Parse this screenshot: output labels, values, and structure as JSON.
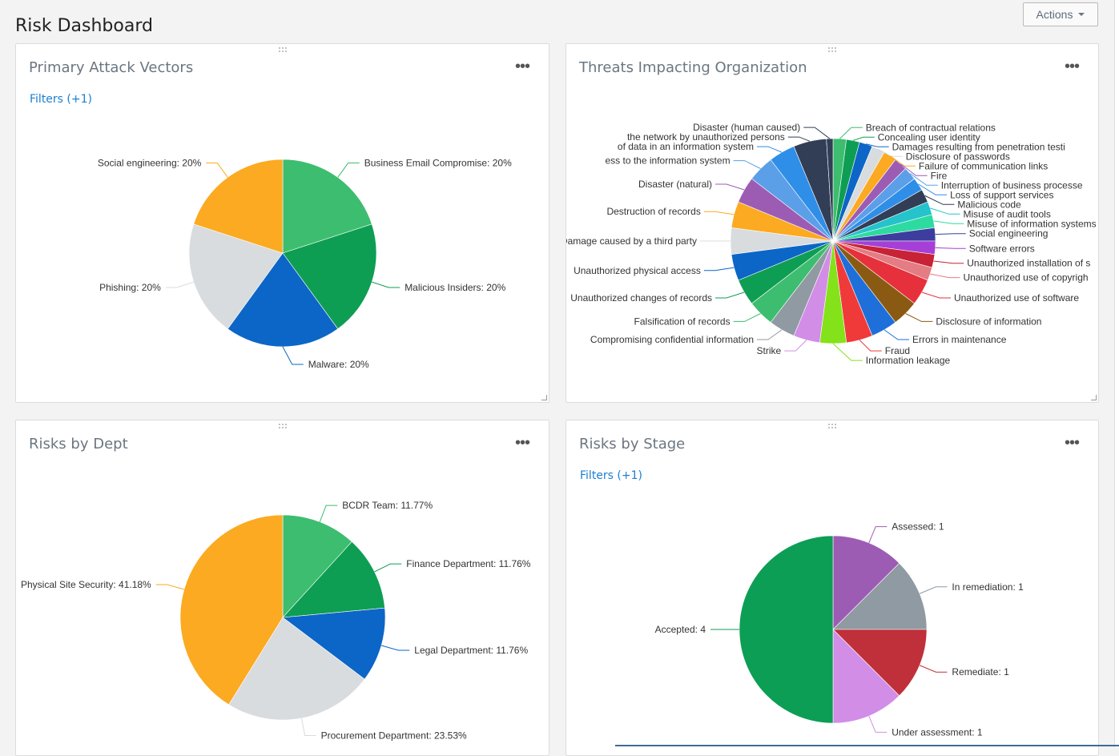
{
  "page": {
    "title": "Risk Dashboard",
    "actions_label": "Actions"
  },
  "panels": [
    {
      "title": "Primary Attack Vectors",
      "filters": "Filters (+1)"
    },
    {
      "title": "Threats Impacting Organization",
      "filters": ""
    },
    {
      "title": "Risks by Dept",
      "filters": ""
    },
    {
      "title": "Risks by Stage",
      "filters": "Filters (+1)"
    }
  ],
  "chart_data": [
    {
      "type": "pie",
      "title": "Primary Attack Vectors",
      "slices": [
        {
          "label": "Business Email Compromise: 20%",
          "value": 20,
          "color": "#3dbd6f"
        },
        {
          "label": "Malicious Insiders: 20%",
          "value": 20,
          "color": "#0e9e53"
        },
        {
          "label": "Malware: 20%",
          "value": 20,
          "color": "#0c66c7"
        },
        {
          "label": "Phishing: 20%",
          "value": 20,
          "color": "#d8dcdf"
        },
        {
          "label": "Social engineering: 20%",
          "value": 20,
          "color": "#fbaa21"
        }
      ]
    },
    {
      "type": "pie",
      "title": "Threats Impacting Organization",
      "slices": [
        {
          "label": "Breach of contractual relations",
          "value": 2,
          "color": "#3dbd6f"
        },
        {
          "label": "Concealing user identity",
          "value": 2,
          "color": "#0e9e53"
        },
        {
          "label": "Damages resulting from penetration testi",
          "value": 2,
          "color": "#0c66c7"
        },
        {
          "label": "Disclosure of passwords",
          "value": 2,
          "color": "#d8dcdf"
        },
        {
          "label": "Failure of communication links",
          "value": 2,
          "color": "#fbaa21"
        },
        {
          "label": "Fire",
          "value": 2,
          "color": "#9c5cb4"
        },
        {
          "label": "Interruption of business processe",
          "value": 2,
          "color": "#5b9fe8"
        },
        {
          "label": "Loss of support services",
          "value": 2,
          "color": "#2f8ee8"
        },
        {
          "label": "Malicious code",
          "value": 2,
          "color": "#313e56"
        },
        {
          "label": "Misuse of audit tools",
          "value": 2,
          "color": "#25c3cc"
        },
        {
          "label": "Misuse of information systems",
          "value": 2,
          "color": "#2ddba1"
        },
        {
          "label": "Social engineering",
          "value": 2,
          "color": "#3d3d9e"
        },
        {
          "label": "Software errors",
          "value": 2,
          "color": "#a63fd8"
        },
        {
          "label": "Unauthorized installation of s",
          "value": 2,
          "color": "#c72235"
        },
        {
          "label": "Unauthorized use of copyrigh",
          "value": 2,
          "color": "#e37d83"
        },
        {
          "label": "Unauthorized use of software",
          "value": 4,
          "color": "#e6313c"
        },
        {
          "label": "Disclosure of information",
          "value": 4,
          "color": "#8b5a12"
        },
        {
          "label": "Errors in maintenance",
          "value": 4,
          "color": "#1e6fd9"
        },
        {
          "label": "Fraud",
          "value": 4,
          "color": "#f03a3a"
        },
        {
          "label": "Information leakage",
          "value": 4,
          "color": "#84e21b"
        },
        {
          "label": "Strike",
          "value": 4,
          "color": "#d28de7"
        },
        {
          "label": "Compromising confidential information",
          "value": 4,
          "color": "#8f9aa2"
        },
        {
          "label": "Falsification of records",
          "value": 4,
          "color": "#3dbd6f"
        },
        {
          "label": "Unauthorized changes of records",
          "value": 4,
          "color": "#0e9e53"
        },
        {
          "label": "Unauthorized physical access",
          "value": 4,
          "color": "#0c66c7"
        },
        {
          "label": "Damage caused by a third party",
          "value": 4,
          "color": "#d8dcdf"
        },
        {
          "label": "Destruction of records",
          "value": 4,
          "color": "#fbaa21"
        },
        {
          "label": "Disaster (natural)",
          "value": 4,
          "color": "#9c5cb4"
        },
        {
          "label": "ess to the information system",
          "value": 4,
          "color": "#5b9fe8"
        },
        {
          "label": "of data in an information system",
          "value": 4,
          "color": "#2f8ee8"
        },
        {
          "label": "the network by unauthorized persons",
          "value": 5,
          "color": "#313e56"
        },
        {
          "label": "Disaster (human caused)",
          "value": 1,
          "color": "#313e56"
        }
      ]
    },
    {
      "type": "pie",
      "title": "Risks by Dept",
      "slices": [
        {
          "label": "BCDR Team: 11.77%",
          "value": 11.77,
          "color": "#3dbd6f"
        },
        {
          "label": "Finance Department: 11.76%",
          "value": 11.76,
          "color": "#0e9e53"
        },
        {
          "label": "Legal Department: 11.76%",
          "value": 11.76,
          "color": "#0c66c7"
        },
        {
          "label": "Procurement Department: 23.53%",
          "value": 23.53,
          "color": "#d8dcdf"
        },
        {
          "label": "Physical Site Security: 41.18%",
          "value": 41.18,
          "color": "#fbaa21"
        }
      ]
    },
    {
      "type": "pie",
      "title": "Risks by Stage",
      "slices": [
        {
          "label": "Assessed: 1",
          "value": 1,
          "color": "#9c5cb4"
        },
        {
          "label": "In remediation: 1",
          "value": 1,
          "color": "#8f9aa2"
        },
        {
          "label": "Remediate: 1",
          "value": 1,
          "color": "#c0303a"
        },
        {
          "label": "Under assessment: 1",
          "value": 1,
          "color": "#d28de7"
        },
        {
          "label": "Accepted: 4",
          "value": 4,
          "color": "#0c9e55"
        }
      ]
    }
  ]
}
